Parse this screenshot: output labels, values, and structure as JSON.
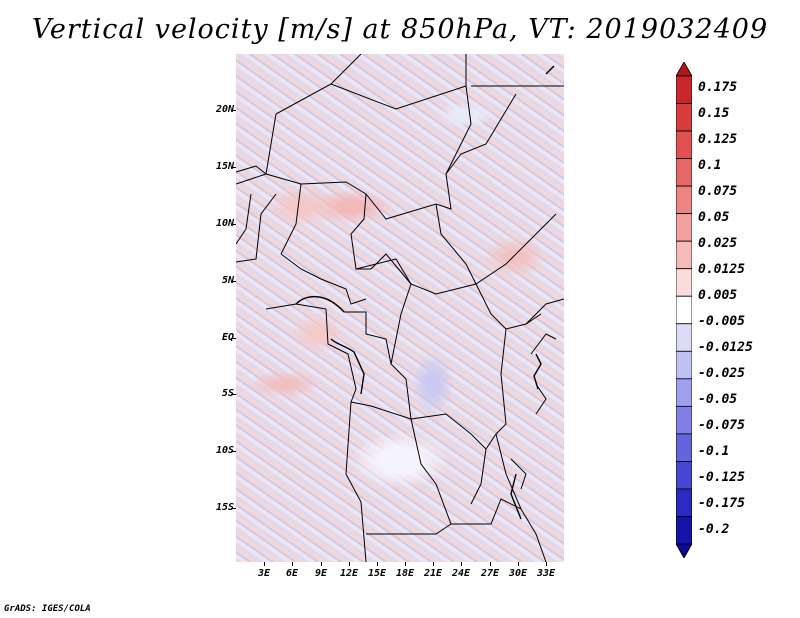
{
  "title": "Vertical velocity [m/s] at 850hPa, VT: 2019032409",
  "lat_labels": [
    "20N",
    "15N",
    "10N",
    "5N",
    "EQ",
    "5S",
    "10S",
    "15S"
  ],
  "lon_labels": [
    "3E",
    "6E",
    "9E",
    "12E",
    "15E",
    "18E",
    "21E",
    "24E",
    "27E",
    "30E",
    "33E"
  ],
  "colorbar": {
    "labels": [
      "0.175",
      "0.15",
      "0.125",
      "0.1",
      "0.075",
      "0.05",
      "0.025",
      "0.0125",
      "0.005",
      "-0.005",
      "-0.0125",
      "-0.025",
      "-0.05",
      "-0.075",
      "-0.1",
      "-0.125",
      "-0.175",
      "-0.2"
    ],
    "colors": [
      "#b2181b",
      "#c8282b",
      "#d63c3c",
      "#e05050",
      "#e46868",
      "#ec8484",
      "#f2a0a0",
      "#f6bcbc",
      "#fadcdc",
      "#ffffff",
      "#dcdcf6",
      "#c0c0f2",
      "#a0a0ee",
      "#8080e6",
      "#6464de",
      "#4646d2",
      "#2a2ac0",
      "#1414a8",
      "#0a0a90"
    ]
  },
  "footer": "GrADS: IGES/COLA"
}
